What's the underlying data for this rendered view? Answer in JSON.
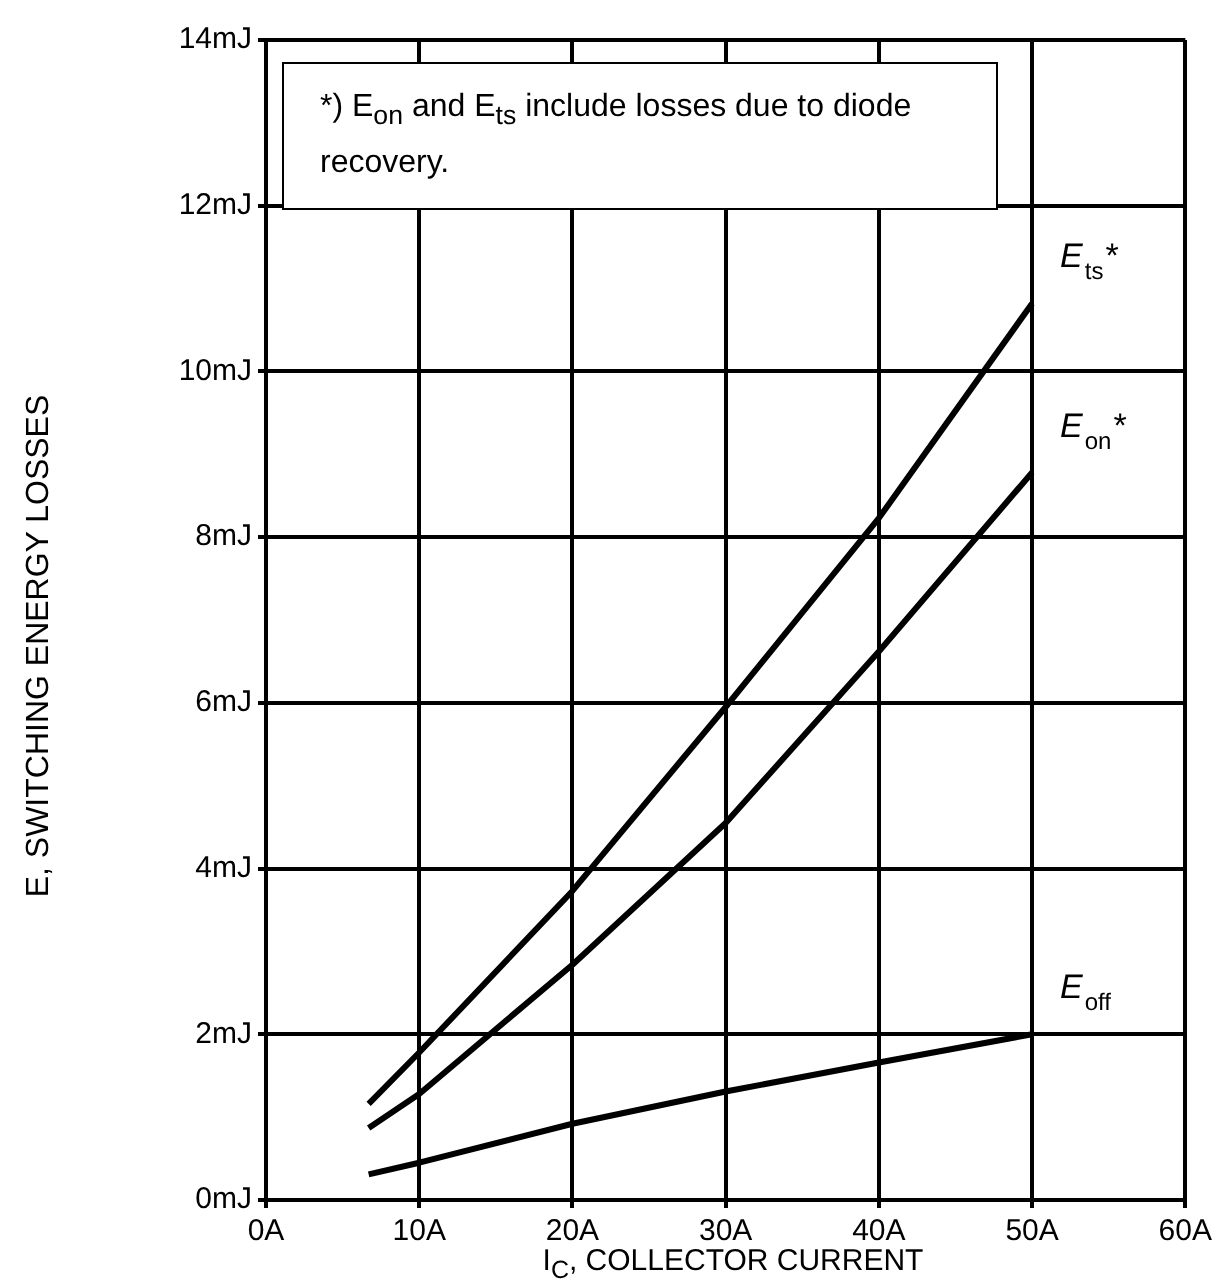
{
  "chart_data": {
    "type": "line",
    "xlabel": "I$_{C}$, COLLECTOR CURRENT",
    "ylabel": "E, SWITCHING ENERGY LOSSES",
    "annotations": [
      "*) E$_{on}$ and E$_{ts}$ include losses due to diode recovery."
    ],
    "xlim": [
      0,
      60
    ],
    "xticks": [
      {
        "value": 0,
        "label": "0A"
      },
      {
        "value": 10,
        "label": "10A"
      },
      {
        "value": 20,
        "label": "20A"
      },
      {
        "value": 30,
        "label": "30A"
      },
      {
        "value": 40,
        "label": "40A"
      },
      {
        "value": 50,
        "label": "50A"
      },
      {
        "value": 60,
        "label": "60A"
      }
    ],
    "ylim": [
      0,
      14
    ],
    "yticks": [
      {
        "value": 0,
        "label": "0mJ"
      },
      {
        "value": 2,
        "label": "2mJ"
      },
      {
        "value": 4,
        "label": "4mJ"
      },
      {
        "value": 6,
        "label": "6mJ"
      },
      {
        "value": 8,
        "label": "8mJ"
      },
      {
        "value": 10,
        "label": "10mJ"
      },
      {
        "value": 12,
        "label": "12mJ"
      },
      {
        "value": 14,
        "label": "14mJ"
      }
    ],
    "grid": true,
    "legend": false,
    "marker": "none",
    "line_style": "solid",
    "series": [
      {
        "name": "E$_{ts}$*",
        "color": "#000000",
        "x": [
          6.7,
          10,
          20,
          30,
          40,
          50
        ],
        "values": [
          1.16,
          1.78,
          3.73,
          5.95,
          8.23,
          10.82
        ]
      },
      {
        "name": "E$_{on}$*",
        "color": "#000000",
        "x": [
          6.7,
          10,
          20,
          30,
          40,
          50
        ],
        "values": [
          0.87,
          1.28,
          2.84,
          4.55,
          6.62,
          8.78
        ]
      },
      {
        "name": "E$_{off}$",
        "color": "#000000",
        "x": [
          6.7,
          10,
          20,
          30,
          40,
          50
        ],
        "values": [
          0.31,
          0.45,
          0.92,
          1.31,
          1.66,
          2.0
        ]
      }
    ]
  }
}
